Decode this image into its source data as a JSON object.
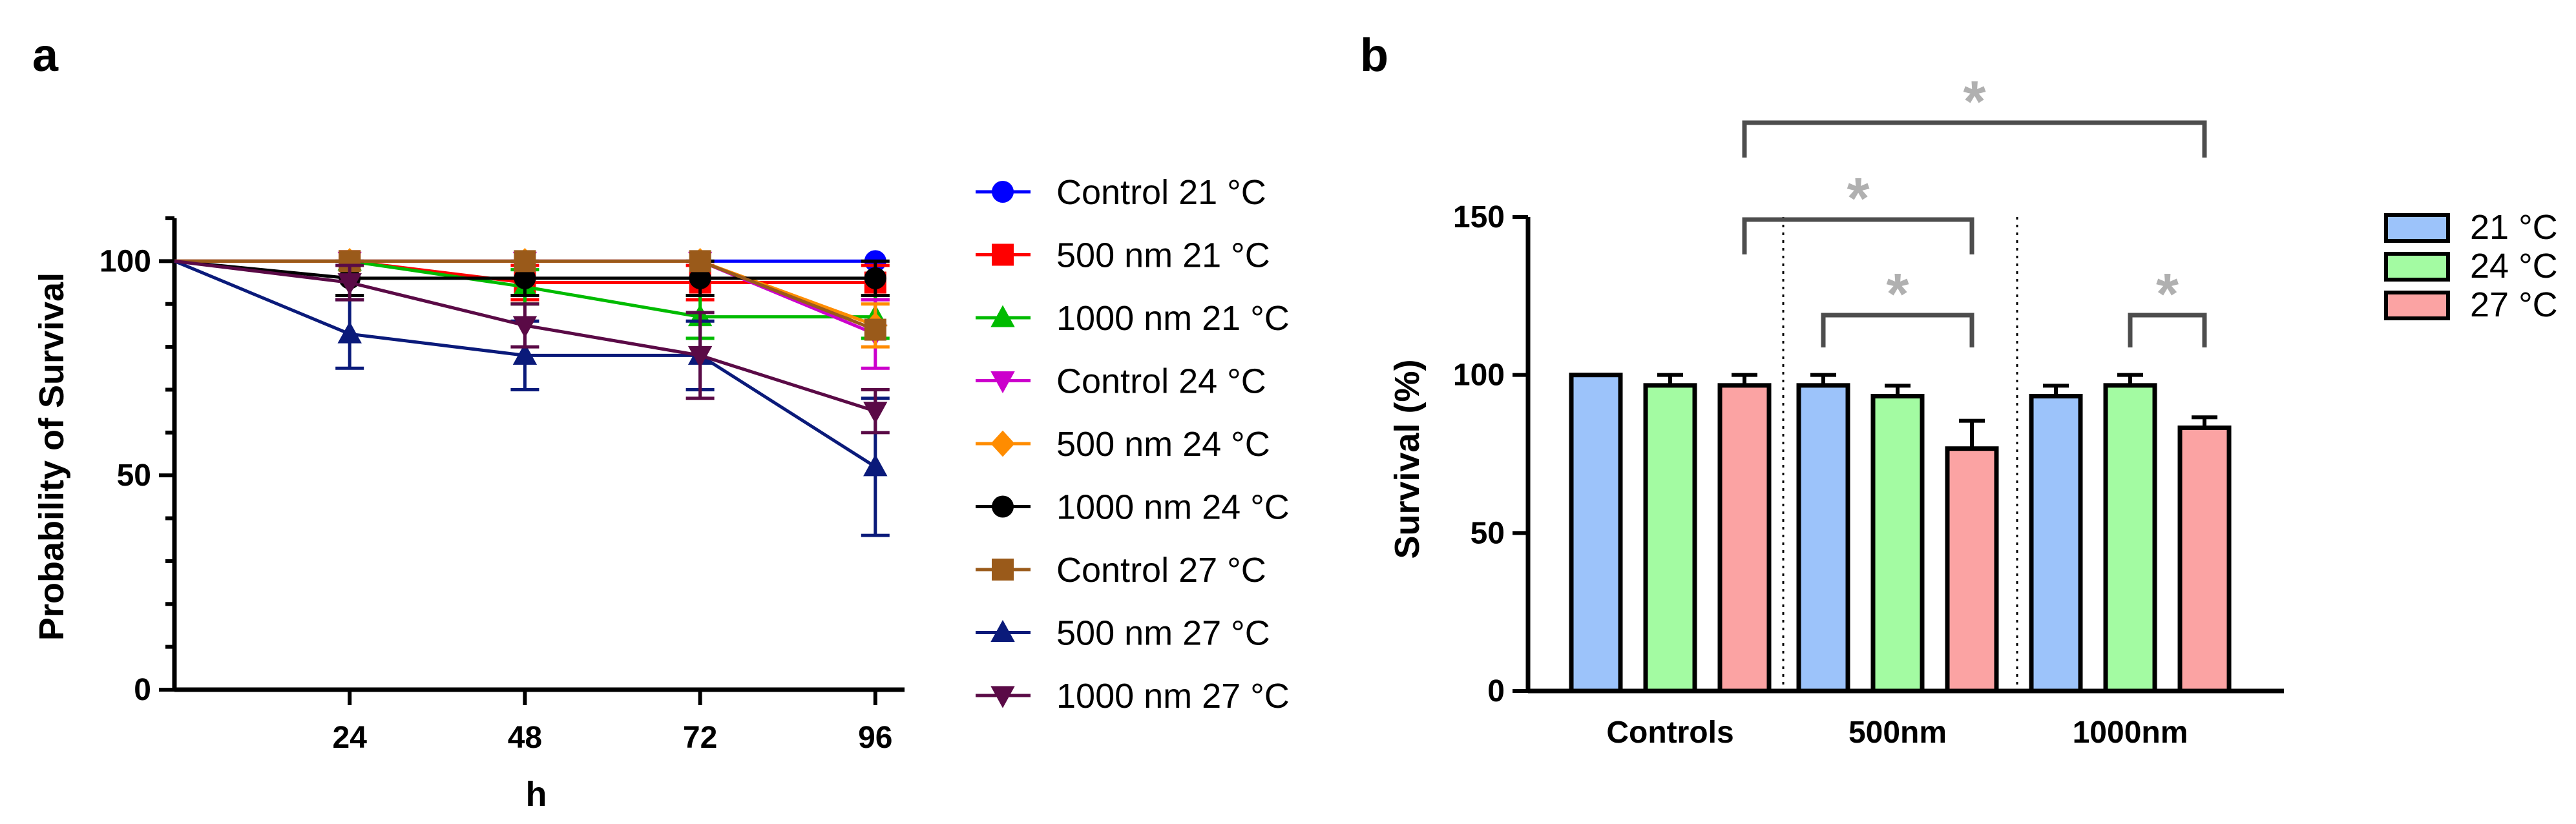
{
  "panel_labels": {
    "a": "a",
    "b": "b"
  },
  "chart_data": [
    {
      "type": "line",
      "panel": "a",
      "title": "",
      "xlabel": "h",
      "ylabel": "Probability of Survival",
      "x": [
        0,
        24,
        48,
        72,
        96
      ],
      "xticks": [
        "24",
        "48",
        "72",
        "96"
      ],
      "xtick_values": [
        24,
        48,
        72,
        96
      ],
      "yticks": [
        "0",
        "50",
        "100"
      ],
      "ytick_values": [
        0,
        50,
        100
      ],
      "xlim": [
        0,
        100
      ],
      "ylim": [
        0,
        110
      ],
      "legend_position": "right",
      "series": [
        {
          "name": "Control 21 °C",
          "color": "#0000ff",
          "marker": "circle",
          "values": [
            100,
            100,
            100,
            100,
            100
          ],
          "err": [
            0,
            0,
            0,
            0,
            0
          ]
        },
        {
          "name": "500 nm 21 °C",
          "color": "#ff0000",
          "marker": "square",
          "values": [
            100,
            100,
            95,
            95,
            95
          ],
          "err": [
            0,
            0,
            4,
            4,
            4
          ]
        },
        {
          "name": "1000 nm 21 °C",
          "color": "#00bb00",
          "marker": "triangle-up",
          "values": [
            100,
            100,
            94,
            87,
            87
          ],
          "err": [
            0,
            0,
            4,
            5,
            5
          ]
        },
        {
          "name": "Control 24 °C",
          "color": "#cc00cc",
          "marker": "triangle-down",
          "values": [
            100,
            100,
            100,
            100,
            83
          ],
          "err": [
            0,
            0,
            0,
            0,
            8
          ]
        },
        {
          "name": "500 nm 24 °C",
          "color": "#ff8c00",
          "marker": "diamond",
          "values": [
            100,
            100,
            100,
            100,
            85
          ],
          "err": [
            0,
            0,
            0,
            0,
            5
          ]
        },
        {
          "name": "1000 nm 24 °C",
          "color": "#000000",
          "marker": "circle",
          "values": [
            100,
            96,
            96,
            96,
            96
          ],
          "err": [
            0,
            4,
            4,
            4,
            4
          ]
        },
        {
          "name": "Control 27 °C",
          "color": "#9a5a1a",
          "marker": "square",
          "values": [
            100,
            100,
            100,
            100,
            84
          ],
          "err": [
            0,
            0,
            0,
            0,
            0
          ]
        },
        {
          "name": "500 nm 27 °C",
          "color": "#0a1a7a",
          "marker": "triangle-up",
          "values": [
            100,
            83,
            78,
            78,
            52
          ],
          "err": [
            0,
            8,
            8,
            8,
            16
          ]
        },
        {
          "name": "1000 nm 27 °C",
          "color": "#5a0a46",
          "marker": "triangle-down",
          "values": [
            100,
            95,
            85,
            78,
            65
          ],
          "err": [
            0,
            4,
            5,
            10,
            5
          ]
        }
      ]
    },
    {
      "type": "bar",
      "panel": "b",
      "title": "",
      "xlabel": "",
      "ylabel": "Survival (%)",
      "categories": [
        "Controls",
        "500nm",
        "1000nm"
      ],
      "yticks": [
        "0",
        "50",
        "100",
        "150"
      ],
      "ytick_values": [
        0,
        50,
        100,
        150
      ],
      "ylim": [
        0,
        150
      ],
      "legend_position": "right",
      "series": [
        {
          "name": "21 °C",
          "color": "#9cc3fa",
          "values": [
            100,
            96.7,
            93.3
          ],
          "err": [
            0,
            3.3,
            3.3
          ]
        },
        {
          "name": "24 °C",
          "color": "#a3fba2",
          "values": [
            96.7,
            93.3,
            96.7
          ],
          "err": [
            3.3,
            3.3,
            3.3
          ]
        },
        {
          "name": "27 °C",
          "color": "#fba3a3",
          "values": [
            96.7,
            76.7,
            83.3
          ],
          "err": [
            3.3,
            8.8,
            3.3
          ]
        }
      ],
      "annotations": [
        {
          "label": "*",
          "from": "Controls / 27 °C",
          "to": "1000nm / 27 °C"
        },
        {
          "label": "*",
          "from": "Controls / 27 °C",
          "to": "500nm / 27 °C"
        },
        {
          "label": "*",
          "from": "500nm / 21 °C",
          "to": "500nm / 27 °C"
        },
        {
          "label": "*",
          "from": "1000nm / 24 °C",
          "to": "1000nm / 27 °C"
        }
      ]
    }
  ]
}
